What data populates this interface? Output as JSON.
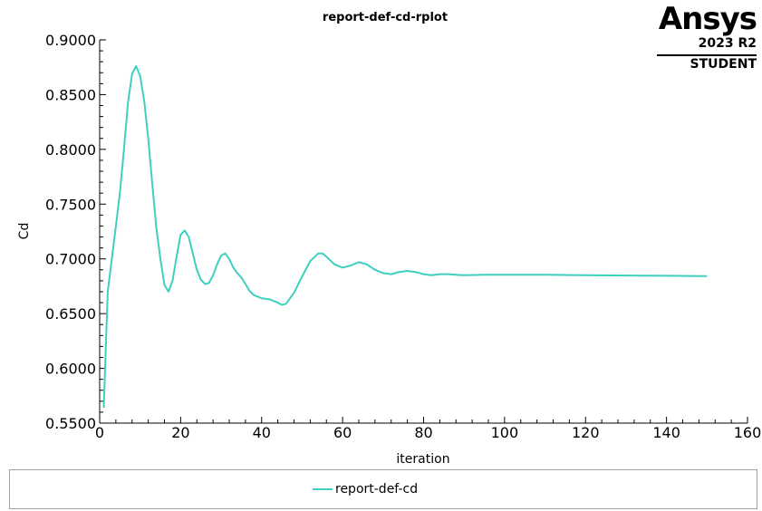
{
  "logo": {
    "name": "Ansys",
    "version": "2023 R2",
    "edition": "STUDENT"
  },
  "chart_data": {
    "type": "line",
    "title": "report-def-cd-rplot",
    "xlabel": "iteration",
    "ylabel": "Cd",
    "xlim": [
      0,
      160
    ],
    "ylim": [
      0.55,
      0.9
    ],
    "x_ticks": [
      0,
      20,
      40,
      60,
      80,
      100,
      120,
      140,
      160
    ],
    "y_ticks": [
      "0.5500",
      "0.6000",
      "0.6500",
      "0.7000",
      "0.7500",
      "0.8000",
      "0.8500",
      "0.9000"
    ],
    "grid": false,
    "legend_position": "bottom",
    "series": [
      {
        "name": "report-def-cd",
        "color": "#3ecfbf",
        "x": [
          1,
          2,
          3,
          4,
          5,
          6,
          7,
          8,
          9,
          10,
          11,
          12,
          13,
          14,
          15,
          16,
          17,
          18,
          19,
          20,
          21,
          22,
          23,
          24,
          25,
          26,
          27,
          28,
          29,
          30,
          31,
          32,
          33,
          34,
          35,
          36,
          37,
          38,
          40,
          42,
          44,
          45,
          46,
          48,
          50,
          52,
          54,
          55,
          56,
          58,
          60,
          62,
          64,
          66,
          68,
          70,
          72,
          74,
          76,
          78,
          80,
          82,
          84,
          86,
          88,
          90,
          95,
          100,
          110,
          120,
          130,
          140,
          150
        ],
        "values": [
          0.564,
          0.67,
          0.7,
          0.73,
          0.76,
          0.8,
          0.843,
          0.869,
          0.876,
          0.867,
          0.844,
          0.81,
          0.768,
          0.728,
          0.7,
          0.676,
          0.67,
          0.68,
          0.702,
          0.722,
          0.726,
          0.72,
          0.705,
          0.69,
          0.681,
          0.677,
          0.678,
          0.685,
          0.695,
          0.703,
          0.705,
          0.7,
          0.692,
          0.687,
          0.683,
          0.677,
          0.671,
          0.667,
          0.664,
          0.663,
          0.66,
          0.658,
          0.659,
          0.669,
          0.684,
          0.698,
          0.705,
          0.705,
          0.702,
          0.695,
          0.692,
          0.694,
          0.697,
          0.695,
          0.69,
          0.687,
          0.686,
          0.688,
          0.689,
          0.688,
          0.686,
          0.685,
          0.686,
          0.686,
          0.6855,
          0.685,
          0.6855,
          0.6855,
          0.6855,
          0.685,
          0.6848,
          0.6845,
          0.6842
        ]
      }
    ]
  }
}
